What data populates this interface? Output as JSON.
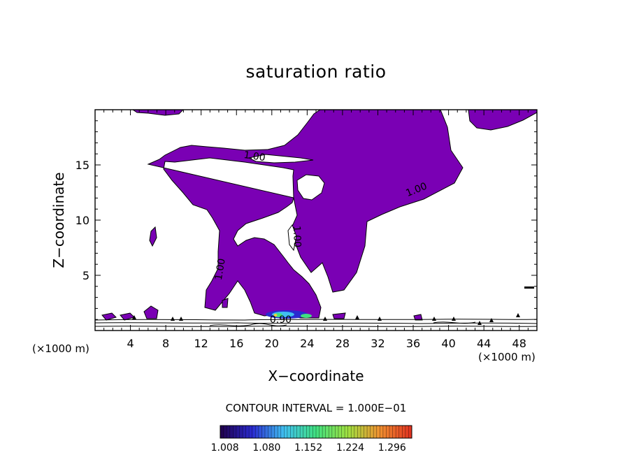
{
  "chart_data": {
    "type": "heatmap",
    "title": "saturation ratio",
    "xlabel": "X−coordinate",
    "ylabel": "Z−coordinate",
    "x_unit": "(×1000 m)",
    "y_unit": "(×1000 m)",
    "xlim": [
      0,
      50
    ],
    "ylim": [
      0,
      20
    ],
    "x_ticks": [
      4,
      8,
      12,
      16,
      20,
      24,
      28,
      32,
      36,
      40,
      44,
      48
    ],
    "y_ticks": [
      5,
      10,
      15
    ],
    "contour_interval_label": "CONTOUR INTERVAL = 1.000E−01",
    "contour_labels": [
      {
        "text": "1.00",
        "x": 18,
        "z": 15.5
      },
      {
        "text": "1.00",
        "x": 36.5,
        "z": 12.5
      },
      {
        "text": "1.00",
        "x": 22.5,
        "z": 8.5
      },
      {
        "text": "1.00",
        "x": 14.5,
        "z": 5.5
      },
      {
        "text": "0.90",
        "x": 21,
        "z": 0.7
      }
    ],
    "fill_color": "#7a00b4",
    "colorbar": {
      "tick_labels": [
        "1.008",
        "1.080",
        "1.152",
        "1.224",
        "1.296"
      ],
      "tick_values": [
        1.008,
        1.08,
        1.152,
        1.224,
        1.296
      ],
      "range": [
        1.0,
        1.33
      ],
      "colors": [
        "#20004a",
        "#2a2ad0",
        "#40c0f0",
        "#40e080",
        "#a0e040",
        "#f09030",
        "#e03020"
      ]
    }
  }
}
